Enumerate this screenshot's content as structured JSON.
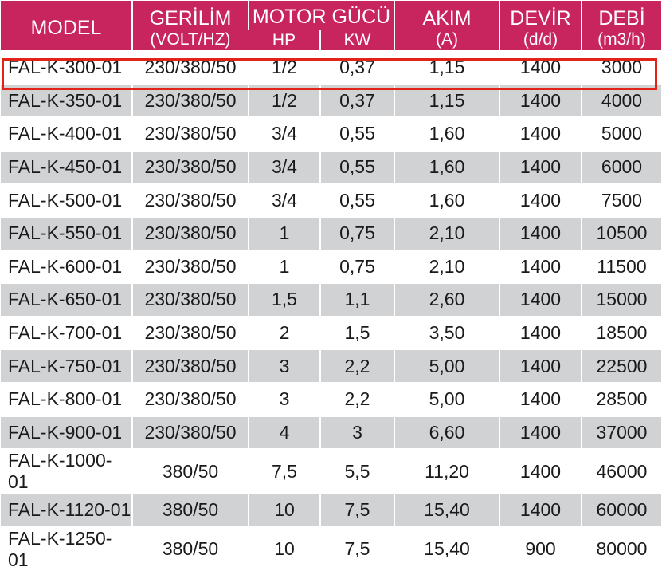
{
  "headers": {
    "model": "MODEL",
    "voltage": "GERİLİM",
    "voltage_unit": "(VOLT/HZ)",
    "motor": "MOTOR GÜCÜ",
    "hp": "HP",
    "kw": "KW",
    "current": "AKIM",
    "current_unit": "(A)",
    "speed": "DEVİR",
    "speed_unit": "(d/d)",
    "flow": "DEBİ",
    "flow_unit": "(m3/h)"
  },
  "highlight_color": "#e2231a",
  "header_color": "#c8255e",
  "stripe_color": "#d1d2d4",
  "rows": [
    {
      "model": "FAL-K-300-01",
      "voltage": "230/380/50",
      "hp": "1/2",
      "kw": "0,37",
      "current": "1,15",
      "speed": "1400",
      "flow": "3000"
    },
    {
      "model": "FAL-K-350-01",
      "voltage": "230/380/50",
      "hp": "1/2",
      "kw": "0,37",
      "current": "1,15",
      "speed": "1400",
      "flow": "4000"
    },
    {
      "model": "FAL-K-400-01",
      "voltage": "230/380/50",
      "hp": "3/4",
      "kw": "0,55",
      "current": "1,60",
      "speed": "1400",
      "flow": "5000"
    },
    {
      "model": "FAL-K-450-01",
      "voltage": "230/380/50",
      "hp": "3/4",
      "kw": "0,55",
      "current": "1,60",
      "speed": "1400",
      "flow": "6000"
    },
    {
      "model": "FAL-K-500-01",
      "voltage": "230/380/50",
      "hp": "3/4",
      "kw": "0,55",
      "current": "1,60",
      "speed": "1400",
      "flow": "7500"
    },
    {
      "model": "FAL-K-550-01",
      "voltage": "230/380/50",
      "hp": "1",
      "kw": "0,75",
      "current": "2,10",
      "speed": "1400",
      "flow": "10500"
    },
    {
      "model": "FAL-K-600-01",
      "voltage": "230/380/50",
      "hp": "1",
      "kw": "0,75",
      "current": "2,10",
      "speed": "1400",
      "flow": "11500"
    },
    {
      "model": "FAL-K-650-01",
      "voltage": "230/380/50",
      "hp": "1,5",
      "kw": "1,1",
      "current": "2,60",
      "speed": "1400",
      "flow": "15000"
    },
    {
      "model": "FAL-K-700-01",
      "voltage": "230/380/50",
      "hp": "2",
      "kw": "1,5",
      "current": "3,50",
      "speed": "1400",
      "flow": "18500"
    },
    {
      "model": "FAL-K-750-01",
      "voltage": "230/380/50",
      "hp": "3",
      "kw": "2,2",
      "current": "5,00",
      "speed": "1400",
      "flow": "22500"
    },
    {
      "model": "FAL-K-800-01",
      "voltage": "230/380/50",
      "hp": "3",
      "kw": "2,2",
      "current": "5,00",
      "speed": "1400",
      "flow": "28500"
    },
    {
      "model": "FAL-K-900-01",
      "voltage": "230/380/50",
      "hp": "4",
      "kw": "3",
      "current": "6,60",
      "speed": "1400",
      "flow": "37000"
    },
    {
      "model": "FAL-K-1000-01",
      "voltage": "380/50",
      "hp": "7,5",
      "kw": "5,5",
      "current": "11,20",
      "speed": "1400",
      "flow": "46000"
    },
    {
      "model": "FAL-K-1120-01",
      "voltage": "380/50",
      "hp": "10",
      "kw": "7,5",
      "current": "15,40",
      "speed": "1400",
      "flow": "60000"
    },
    {
      "model": "FAL-K-1250-01",
      "voltage": "380/50",
      "hp": "10",
      "kw": "7,5",
      "current": "15,40",
      "speed": "900",
      "flow": "80000"
    }
  ]
}
